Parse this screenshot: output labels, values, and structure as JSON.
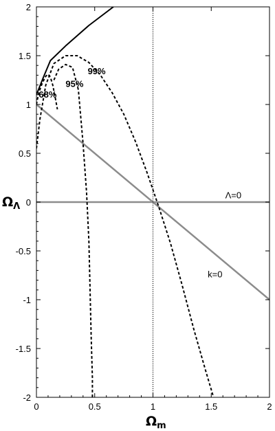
{
  "chart_data": {
    "type": "line",
    "title": "",
    "xlabel": {
      "main": "Ω",
      "sub": "m"
    },
    "ylabel": {
      "main": "Ω",
      "sub": "Λ"
    },
    "xlim": [
      0,
      2
    ],
    "ylim": [
      -2,
      2
    ],
    "x_ticks": [
      "0",
      "0.5",
      "1",
      "1.5",
      "2"
    ],
    "y_ticks": [
      "-2",
      "-1.5",
      "-1",
      "-0.5",
      "0",
      "0.5",
      "1",
      "1.5",
      "2"
    ],
    "grid": false,
    "series": [
      {
        "name": "",
        "style": "solid",
        "color": "#000000",
        "x": [
          0.0,
          0.06,
          0.12,
          0.25,
          0.45,
          0.66
        ],
        "y": [
          1.1,
          1.28,
          1.45,
          1.6,
          1.81,
          2.0
        ]
      },
      {
        "name": "",
        "style": "dashed",
        "color": "#000000",
        "x": [
          0.0,
          0.02,
          0.05,
          0.08,
          0.1,
          0.12,
          0.14,
          0.16,
          0.18
        ],
        "y": [
          1.0,
          1.12,
          1.22,
          1.29,
          1.31,
          1.28,
          1.2,
          1.08,
          0.95
        ]
      },
      {
        "name": "",
        "style": "dashed",
        "color": "#000000",
        "x": [
          0.15,
          0.19,
          0.25,
          0.31,
          0.36,
          0.4,
          0.43,
          0.45,
          0.46,
          0.47,
          0.48,
          0.48
        ],
        "y": [
          1.25,
          1.36,
          1.41,
          1.38,
          1.15,
          0.6,
          0.1,
          -0.4,
          -0.9,
          -1.4,
          -1.8,
          -2.0
        ]
      },
      {
        "name": "",
        "style": "dashed",
        "color": "#000000",
        "x": [
          0.0,
          0.03,
          0.08,
          0.15,
          0.25,
          0.35,
          0.45,
          0.55,
          0.65,
          0.75,
          0.85,
          0.95,
          1.05,
          1.15,
          1.25,
          1.35,
          1.45,
          1.52
        ],
        "y": [
          0.55,
          0.85,
          1.2,
          1.42,
          1.5,
          1.5,
          1.43,
          1.3,
          1.12,
          0.9,
          0.62,
          0.3,
          -0.05,
          -0.42,
          -0.85,
          -1.3,
          -1.72,
          -2.0
        ]
      }
    ],
    "reference_lines": [
      {
        "label": "Λ=0",
        "x": [
          0,
          2
        ],
        "y": [
          0,
          0
        ],
        "color": "#8c8c8c"
      },
      {
        "label": "k=0",
        "x": [
          0,
          2
        ],
        "y": [
          1,
          -1
        ],
        "color": "#8c8c8c"
      },
      {
        "label": "",
        "x": [
          1,
          1
        ],
        "y": [
          -2,
          2
        ],
        "color": "#000000",
        "style": "dotted"
      }
    ],
    "annotations": [
      {
        "text": "68%",
        "x": 0.02,
        "y": 1.07
      },
      {
        "text": "95%",
        "x": 0.25,
        "y": 1.18
      },
      {
        "text": "99%",
        "x": 0.44,
        "y": 1.31
      },
      {
        "text": "Λ=0",
        "x": 1.62,
        "y": 0.04
      },
      {
        "text": "k=0",
        "x": 1.47,
        "y": -0.77
      }
    ]
  }
}
